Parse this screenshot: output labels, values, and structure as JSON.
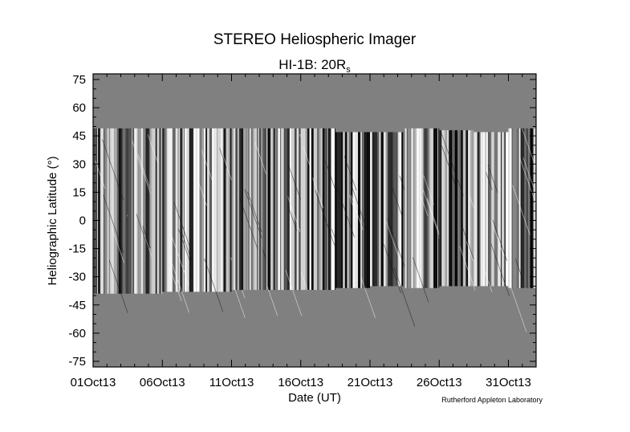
{
  "chart_data": {
    "type": "heatmap",
    "title": "STEREO Heliospheric Imager",
    "subtitle": {
      "prefix": "HI-1B: 20R",
      "subscript": "s"
    },
    "xlabel": "Date (UT)",
    "ylabel": "Heliographic Latitude (°)",
    "credit": "Rutherford Appleton Laboratory",
    "xlim_days": [
      0,
      32
    ],
    "ylim": [
      -78,
      78
    ],
    "x_ticks": [
      {
        "day": 0,
        "label": "01Oct13"
      },
      {
        "day": 5,
        "label": "06Oct13"
      },
      {
        "day": 10,
        "label": "11Oct13"
      },
      {
        "day": 15,
        "label": "16Oct13"
      },
      {
        "day": 20,
        "label": "21Oct13"
      },
      {
        "day": 25,
        "label": "26Oct13"
      },
      {
        "day": 30,
        "label": "31Oct13"
      }
    ],
    "y_ticks": [
      {
        "value": 75,
        "label": "75"
      },
      {
        "value": 60,
        "label": "60"
      },
      {
        "value": 45,
        "label": "45"
      },
      {
        "value": 30,
        "label": "30"
      },
      {
        "value": 15,
        "label": "15"
      },
      {
        "value": 0,
        "label": "0"
      },
      {
        "value": -15,
        "label": "-15"
      },
      {
        "value": -30,
        "label": "-30"
      },
      {
        "value": -45,
        "label": "-45"
      },
      {
        "value": -60,
        "label": "-60"
      },
      {
        "value": -75,
        "label": "-75"
      }
    ],
    "coverage": [
      {
        "start_day": 0.0,
        "end_day": 2.5,
        "lat_max": 49,
        "lat_min": -39
      },
      {
        "start_day": 2.5,
        "end_day": 5.0,
        "lat_max": 49,
        "lat_min": -39
      },
      {
        "start_day": 5.0,
        "end_day": 7.5,
        "lat_max": 49,
        "lat_min": -38
      },
      {
        "start_day": 7.5,
        "end_day": 10.0,
        "lat_max": 49,
        "lat_min": -38
      },
      {
        "start_day": 10.0,
        "end_day": 12.5,
        "lat_max": 49,
        "lat_min": -37
      },
      {
        "start_day": 12.5,
        "end_day": 15.0,
        "lat_max": 49,
        "lat_min": -37
      },
      {
        "start_day": 15.0,
        "end_day": 17.5,
        "lat_max": 49,
        "lat_min": -37
      },
      {
        "start_day": 17.5,
        "end_day": 20.0,
        "lat_max": 47,
        "lat_min": -36
      },
      {
        "start_day": 20.0,
        "end_day": 22.5,
        "lat_max": 47,
        "lat_min": -35
      },
      {
        "start_day": 22.5,
        "end_day": 25.0,
        "lat_max": 49,
        "lat_min": -36
      },
      {
        "start_day": 25.0,
        "end_day": 27.5,
        "lat_max": 48,
        "lat_min": -35
      },
      {
        "start_day": 27.5,
        "end_day": 30.0,
        "lat_max": 47,
        "lat_min": -35
      },
      {
        "start_day": 30.0,
        "end_day": 32.0,
        "lat_max": 49,
        "lat_min": -36
      }
    ],
    "colors": {
      "background": "#808080",
      "frame": "#000000"
    }
  }
}
